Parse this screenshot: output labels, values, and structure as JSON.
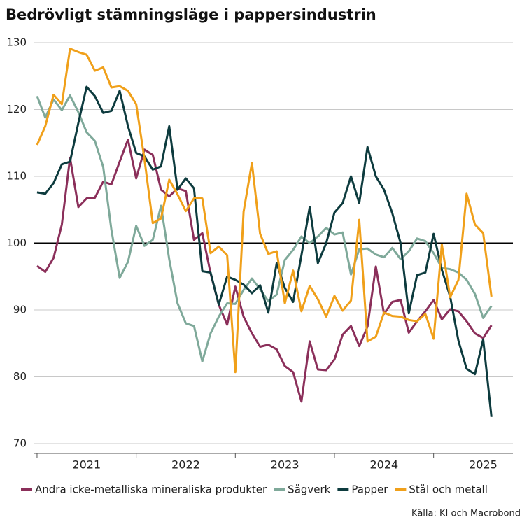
{
  "chart_data": {
    "type": "line",
    "title": "Bedrövligt stämningsläge i pappersindustrin",
    "source": "Källa: KI och Macrobond",
    "x": [
      2021,
      2021.083,
      2021.167,
      2021.25,
      2021.333,
      2021.417,
      2021.5,
      2021.583,
      2021.667,
      2021.75,
      2021.833,
      2021.917,
      2022,
      2022.083,
      2022.167,
      2022.25,
      2022.333,
      2022.417,
      2022.5,
      2022.583,
      2022.667,
      2022.75,
      2022.833,
      2022.917,
      2023,
      2023.083,
      2023.167,
      2023.25,
      2023.333,
      2023.417,
      2023.5,
      2023.583,
      2023.667,
      2023.75,
      2023.833,
      2023.917,
      2024,
      2024.083,
      2024.167,
      2024.25,
      2024.333,
      2024.417,
      2024.5,
      2024.583,
      2024.667,
      2024.75,
      2024.833,
      2024.917,
      2025,
      2025.083,
      2025.167,
      2025.25,
      2025.333,
      2025.417,
      2025.5,
      2025.583
    ],
    "series": [
      {
        "name": "Andra icke-metalliska mineraliska produkter",
        "color": "#8b2f5a",
        "values": [
          96.6,
          95.7,
          97.8,
          102.8,
          112.8,
          105.4,
          106.7,
          106.8,
          109.2,
          108.8,
          112.2,
          115.5,
          109.7,
          114,
          113.2,
          108,
          107,
          108.2,
          107.8,
          100.5,
          101.5,
          95.5,
          90.8,
          87.8,
          93.5,
          89,
          86.5,
          84.5,
          84.8,
          84.1,
          81.6,
          80.7,
          76.3,
          85.3,
          81.1,
          81,
          82.6,
          86.3,
          87.6,
          84.6,
          87.5,
          96.5,
          89.4,
          91.2,
          91.5,
          86.6,
          88.3,
          89.8,
          91.5,
          88.6,
          90.1,
          89.8,
          88.3,
          86.5,
          85.8,
          87.7
        ]
      },
      {
        "name": "Sågverk",
        "color": "#7fa99a",
        "values": [
          122,
          118.8,
          121.5,
          119.9,
          122.1,
          119.6,
          116.6,
          115.3,
          111.4,
          102,
          94.8,
          97.2,
          102.6,
          99.6,
          100.5,
          105.6,
          97.6,
          91,
          88,
          87.6,
          82.3,
          86.5,
          89,
          91,
          90.9,
          93,
          94.7,
          93.1,
          91.3,
          92.3,
          97.5,
          99,
          101,
          100,
          101,
          102.3,
          101.3,
          101.6,
          95.3,
          99.1,
          99.2,
          98.3,
          97.9,
          99.3,
          97.6,
          98.8,
          100.7,
          100.3,
          98.5,
          96.3,
          96.1,
          95.6,
          94.5,
          92.4,
          88.8,
          90.6
        ]
      },
      {
        "name": "Papper",
        "color": "#0d3b3e",
        "values": [
          107.6,
          107.4,
          109,
          111.8,
          112.2,
          118,
          123.4,
          122,
          119.5,
          119.8,
          122.8,
          117.5,
          113.5,
          113,
          111,
          111.5,
          117.5,
          108,
          109.7,
          108.2,
          95.8,
          95.6,
          90.8,
          95,
          94.5,
          93.8,
          92.5,
          93.7,
          89.6,
          97,
          93.3,
          91.2,
          98.2,
          105.4,
          97,
          100,
          104.6,
          106,
          110,
          106,
          114.4,
          110,
          108,
          104.5,
          100,
          89.5,
          95.2,
          95.6,
          101.4,
          96,
          92,
          85.4,
          81.2,
          80.4,
          85.6,
          74
        ]
      },
      {
        "name": "Stål och metall",
        "color": "#f0a01a",
        "values": [
          114.7,
          117.5,
          122.2,
          120.8,
          129.1,
          128.6,
          128.2,
          125.8,
          126.3,
          123.3,
          123.5,
          122.8,
          120.8,
          112.6,
          103,
          103.7,
          109.5,
          107.3,
          104.8,
          106.7,
          106.7,
          98.5,
          99.5,
          98.2,
          80.7,
          104.7,
          112,
          101.4,
          98.4,
          98.8,
          91,
          95.9,
          89.8,
          93.6,
          91.6,
          89,
          92.1,
          89.9,
          91.4,
          103.5,
          85.3,
          86,
          89.6,
          89.1,
          89,
          88.5,
          88.3,
          89.4,
          85.7,
          99.8,
          91.9,
          94.5,
          107.4,
          102.8,
          101.5,
          92
        ]
      }
    ],
    "xlim": [
      2020.965,
      2025.8
    ],
    "xticks": [
      {
        "value": 2021.5,
        "label": "2021"
      },
      {
        "value": 2022.5,
        "label": "2022"
      },
      {
        "value": 2023.5,
        "label": "2023"
      },
      {
        "value": 2024.5,
        "label": "2024"
      },
      {
        "value": 2025.5,
        "label": "2025"
      }
    ],
    "x_minor_ticks": [
      2021,
      2022,
      2023,
      2024,
      2025
    ],
    "ylim": [
      70,
      130
    ],
    "yticks": [
      70,
      80,
      90,
      100,
      110,
      120,
      130
    ],
    "reference_line": 100,
    "grid": true,
    "legend": "bottom"
  }
}
